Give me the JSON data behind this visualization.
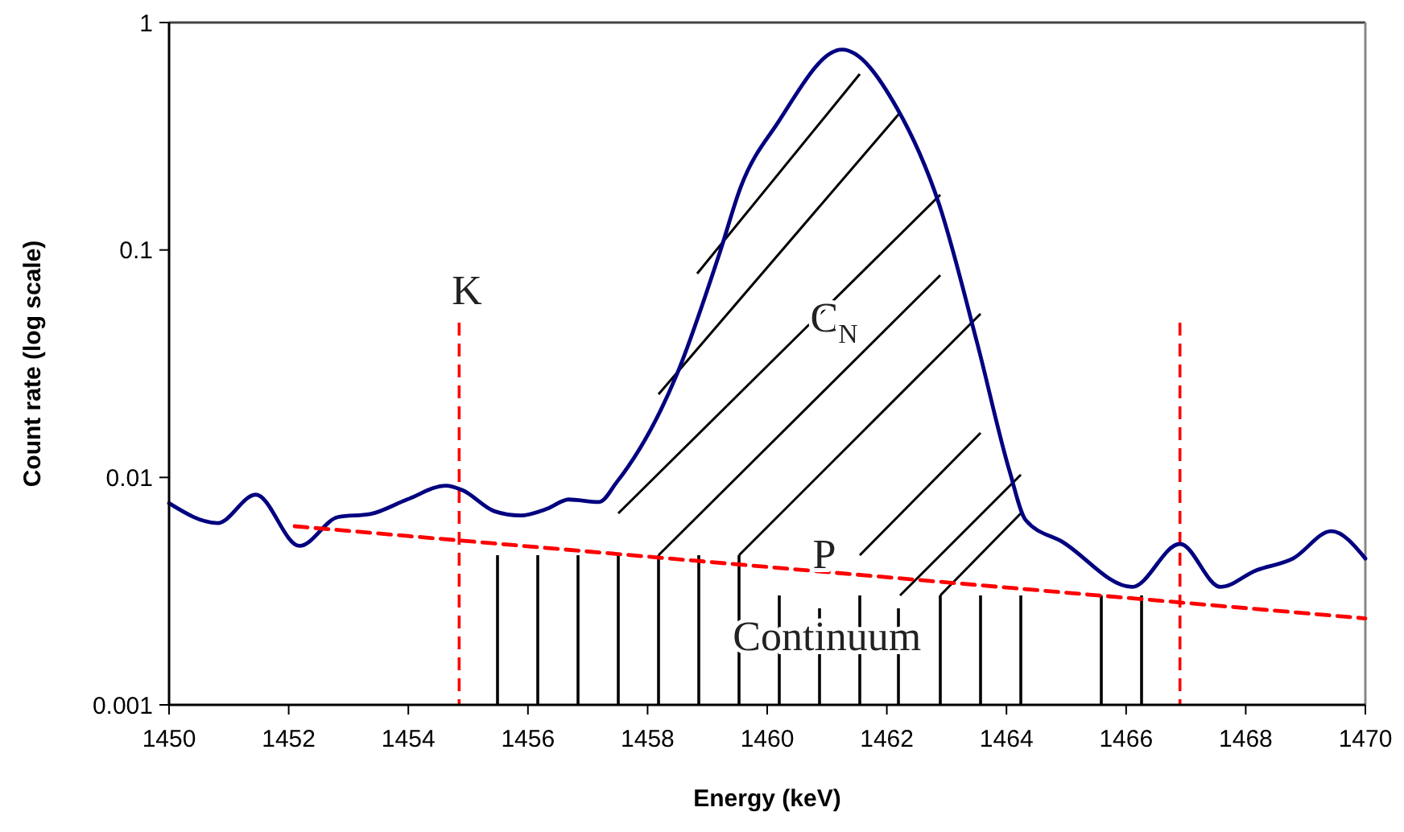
{
  "chart_data": {
    "type": "line",
    "xlabel": "Energy (keV)",
    "ylabel": "Count rate (log scale)",
    "log": "y",
    "xlim": [
      1450,
      1470
    ],
    "xticks": [
      1450,
      1452,
      1454,
      1456,
      1458,
      1460,
      1462,
      1464,
      1466,
      1468,
      1470
    ],
    "ylim": [
      0.001,
      1
    ],
    "yticks": [
      0.001,
      0.01,
      0.1,
      1
    ],
    "grid": false,
    "marker": "none",
    "series": [
      {
        "color": "#000080",
        "line_style": "solid",
        "x": [
          1450,
          1450.81,
          1451.45,
          1452.18,
          1452.83,
          1453.36,
          1453.98,
          1454.63,
          1454.9,
          1455.44,
          1455.87,
          1456.33,
          1456.68,
          1457.19,
          1457.48,
          1458.48,
          1459.21,
          1459.56,
          1460.17,
          1461.25,
          1462.17,
          1462.87,
          1463.51,
          1464.05,
          1464.32,
          1464.94,
          1466.1,
          1466.9,
          1467.58,
          1468.17,
          1468.79,
          1469.43,
          1470
        ],
        "values": [
          0.0077,
          0.0063,
          0.0084,
          0.005,
          0.0067,
          0.0069,
          0.008,
          0.0092,
          0.0088,
          0.0071,
          0.0068,
          0.0073,
          0.008,
          0.0078,
          0.0095,
          0.028,
          0.098,
          0.19,
          0.36,
          0.76,
          0.42,
          0.16,
          0.039,
          0.0107,
          0.0065,
          0.0052,
          0.0033,
          0.0051,
          0.0033,
          0.0039,
          0.0044,
          0.0058,
          0.0044
        ]
      },
      {
        "color": "#ff0000",
        "line_style": "dashed",
        "x": [
          1452.1,
          1470
        ],
        "values": [
          0.0061,
          0.0024
        ]
      }
    ],
    "ref_lines": [
      {
        "axis": "x",
        "value": 1454.85,
        "color": "#ff0000",
        "line_style": "dashed"
      },
      {
        "axis": "x",
        "value": 1466.9,
        "color": "#ff0000",
        "line_style": "dashed"
      }
    ],
    "annotations": [
      "K",
      "C$_{N}$",
      "P",
      {
        "text": "Continuum",
        "x": 1461,
        "y": 0.0038
      }
    ]
  }
}
